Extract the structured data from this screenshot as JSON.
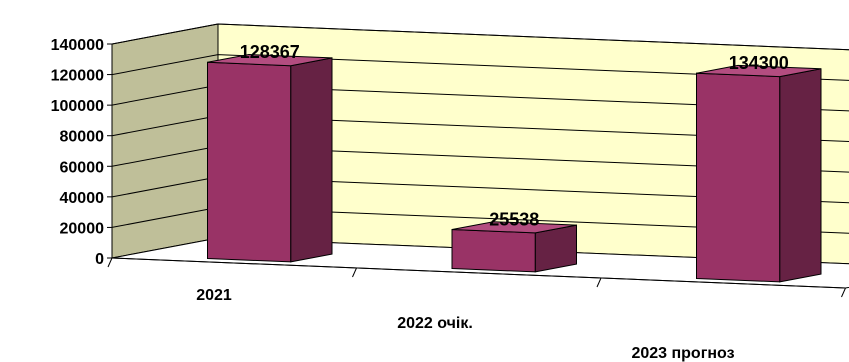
{
  "chart_data": {
    "type": "bar",
    "categories": [
      "2021",
      "2022 очік.",
      "2023 прогноз"
    ],
    "values": [
      128367,
      25538,
      134300
    ],
    "data_labels": [
      "128367",
      "25538",
      "134300"
    ],
    "y_ticks": [
      "0",
      "20000",
      "40000",
      "60000",
      "80000",
      "100000",
      "120000",
      "140000"
    ],
    "ylim": [
      0,
      140000
    ],
    "grid": true,
    "style": "3d-column",
    "colors": {
      "bar_front": "#993366",
      "bar_side": "#662244",
      "bar_top": "#b34d80",
      "back_wall": "#ffffcc",
      "side_wall": "#bfbf99",
      "floor": "#ffffff",
      "outline": "#000000"
    }
  }
}
